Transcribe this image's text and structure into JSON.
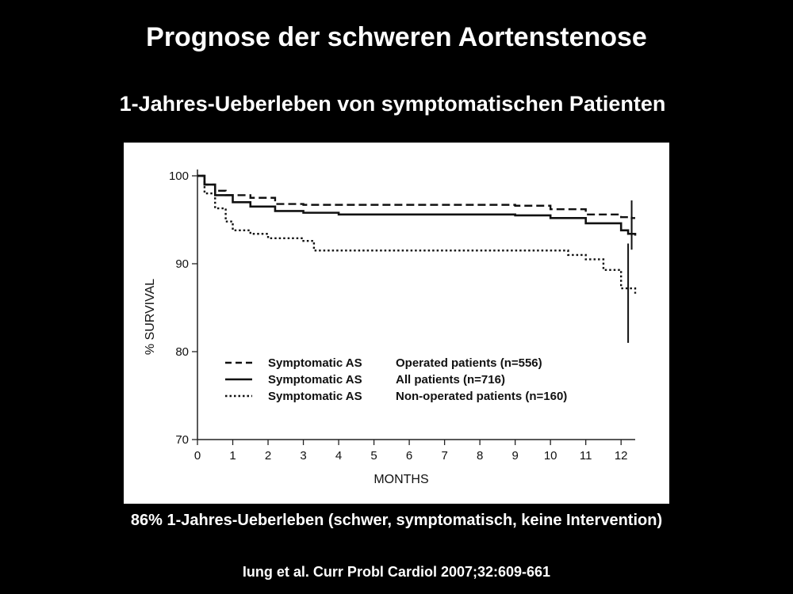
{
  "slide": {
    "title": "Prognose der schweren Aortenstenose",
    "subtitle": "1-Jahres-Ueberleben von symptomatischen Patienten",
    "summary": "86% 1-Jahres-Ueberleben (schwer, symptomatisch, keine Intervention)",
    "citation": "Iung et al. Curr Probl Cardiol 2007;32:609-661"
  },
  "chart_data": {
    "type": "line",
    "xlabel": "MONTHS",
    "ylabel": "% SURVIVAL",
    "xlim": [
      0,
      12.4
    ],
    "ylim": [
      70,
      100
    ],
    "xticks": [
      0,
      1,
      2,
      3,
      4,
      5,
      6,
      7,
      8,
      9,
      10,
      11,
      12
    ],
    "yticks": [
      70,
      80,
      90,
      100
    ],
    "legend_position": "bottom-center",
    "grid": false,
    "series": [
      {
        "name": "Symptomatic AS  Operated patients (n=556)",
        "group": "Symptomatic AS",
        "label": "Operated patients (n=556)",
        "style": "dashed",
        "points": [
          [
            0,
            100
          ],
          [
            0.2,
            99
          ],
          [
            0.5,
            98.3
          ],
          [
            0.8,
            97.8
          ],
          [
            1.5,
            97.5
          ],
          [
            2.2,
            96.8
          ],
          [
            3,
            96.7
          ],
          [
            6,
            96.7
          ],
          [
            9,
            96.6
          ],
          [
            10,
            96.2
          ],
          [
            11,
            95.6
          ],
          [
            12,
            95.3
          ],
          [
            12.3,
            95.2
          ],
          [
            12.4,
            95.2
          ]
        ],
        "ci": {
          "x": 12.3,
          "low": 93.2,
          "high": 97.2
        }
      },
      {
        "name": "Symptomatic AS  All patients (n=716)",
        "group": "Symptomatic AS",
        "label": "All patients (n=716)",
        "style": "solid",
        "points": [
          [
            0,
            100
          ],
          [
            0.2,
            99
          ],
          [
            0.5,
            97.8
          ],
          [
            1,
            97
          ],
          [
            1.5,
            96.5
          ],
          [
            2.2,
            96
          ],
          [
            3,
            95.8
          ],
          [
            4,
            95.6
          ],
          [
            9,
            95.5
          ],
          [
            10,
            95.2
          ],
          [
            11,
            94.6
          ],
          [
            12,
            93.8
          ],
          [
            12.2,
            93.4
          ],
          [
            12.4,
            93.2
          ]
        ],
        "ci": {
          "x": 12.3,
          "low": 91.6,
          "high": 95.4
        }
      },
      {
        "name": "Symptomatic AS  Non-operated patients (n=160)",
        "group": "Symptomatic AS",
        "label": "Non-operated patients (n=160)",
        "style": "dotted",
        "points": [
          [
            0,
            100
          ],
          [
            0.2,
            98
          ],
          [
            0.5,
            96.3
          ],
          [
            0.8,
            94.8
          ],
          [
            1,
            93.8
          ],
          [
            1.5,
            93.4
          ],
          [
            2,
            92.9
          ],
          [
            3,
            92.6
          ],
          [
            3.3,
            91.5
          ],
          [
            10,
            91.5
          ],
          [
            10.5,
            91
          ],
          [
            11,
            90.5
          ],
          [
            11.5,
            89.3
          ],
          [
            12,
            87.2
          ],
          [
            12.4,
            86.6
          ]
        ],
        "ci": {
          "x": 12.2,
          "low": 81,
          "high": 92.3
        }
      }
    ]
  }
}
